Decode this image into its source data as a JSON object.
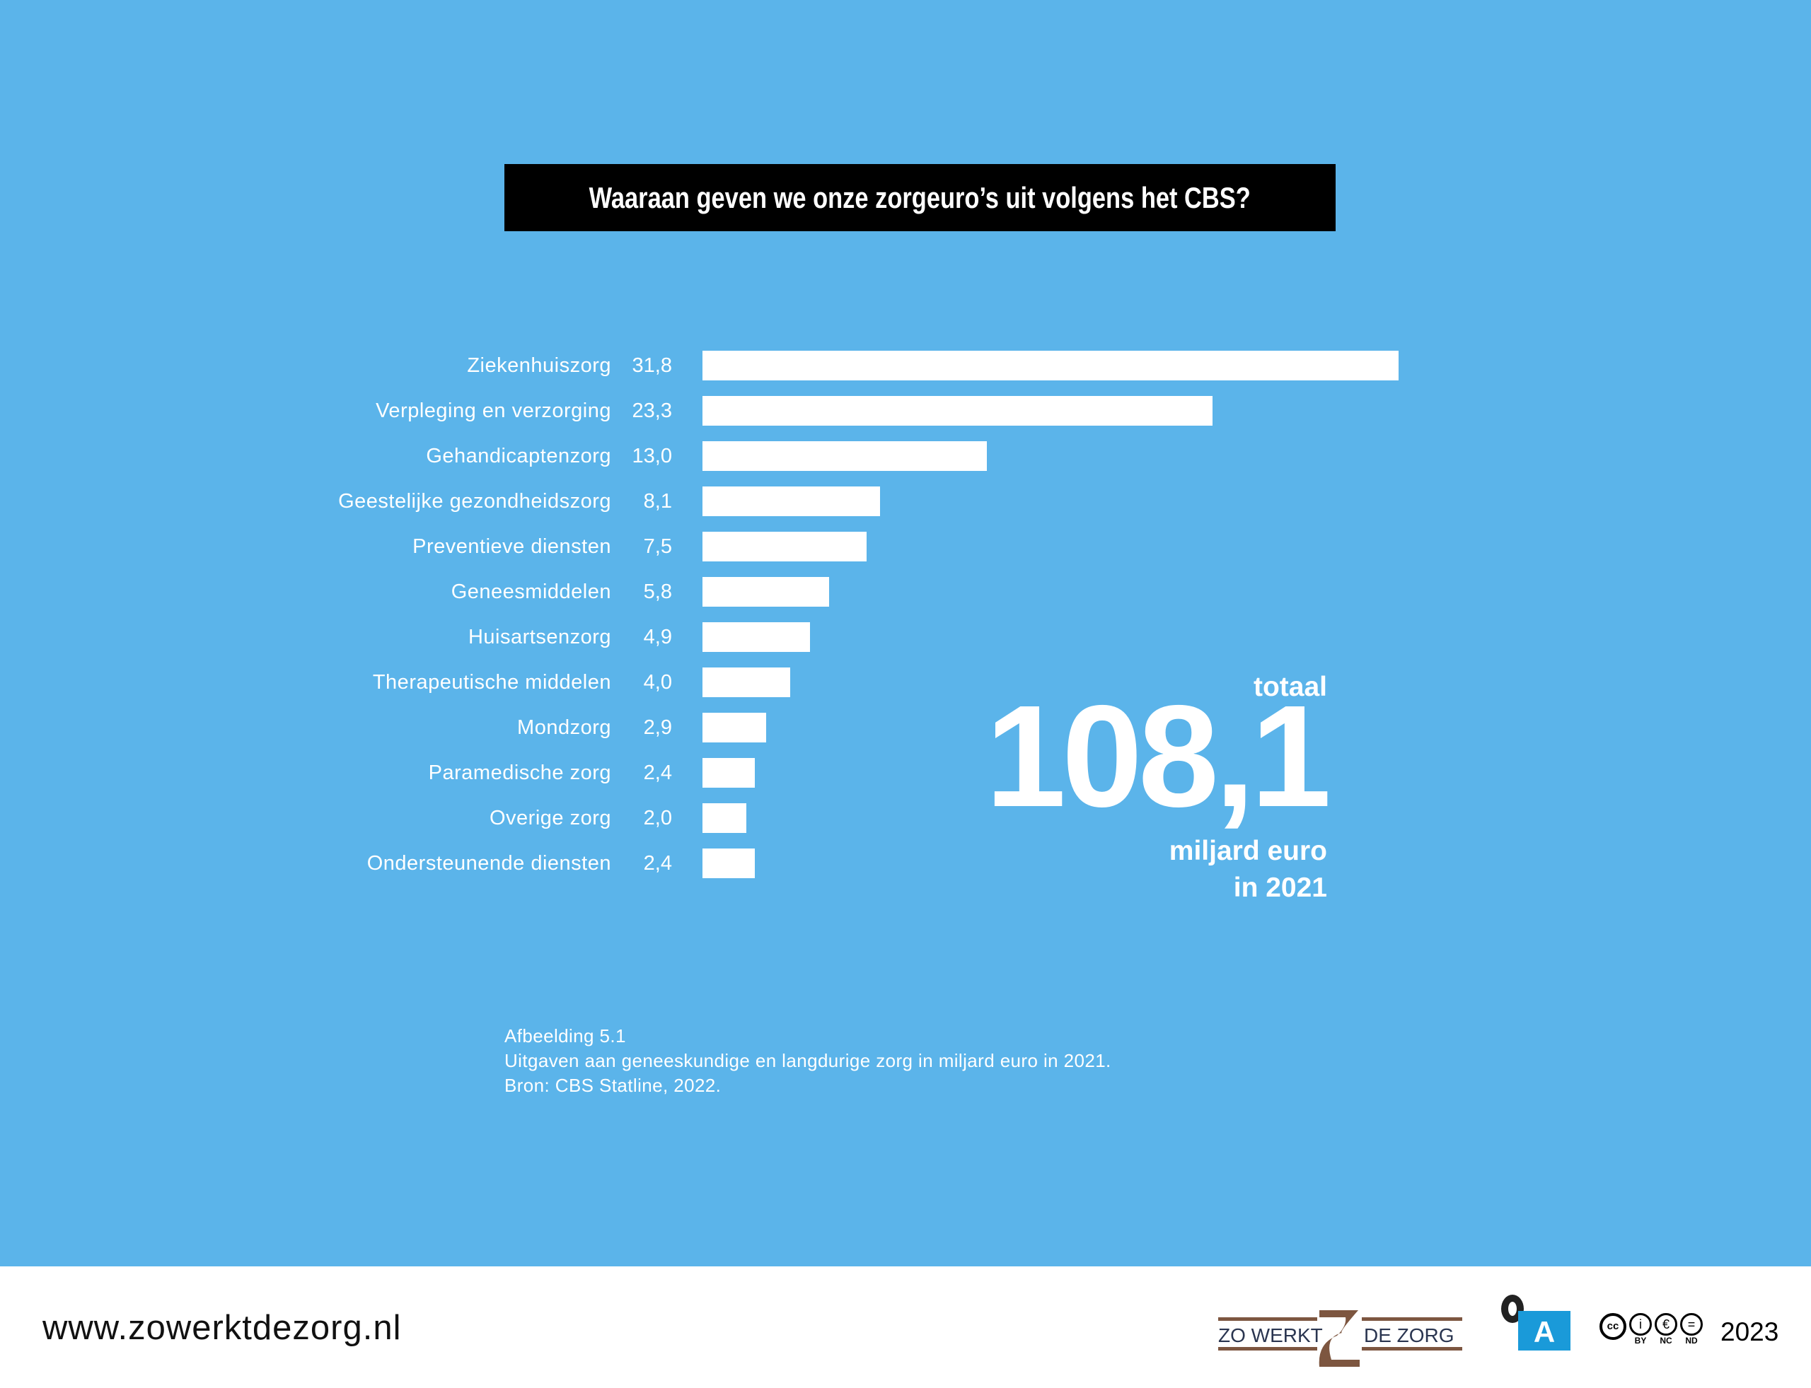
{
  "chart_data": {
    "type": "bar",
    "orientation": "horizontal",
    "title": "Waaraan geven we onze zorgeuro’s uit volgens het CBS?",
    "categories": [
      "Ziekenhuiszorg",
      "Verpleging en verzorging",
      "Gehandicaptenzorg",
      "Geestelijke gezondheidszorg",
      "Preventieve diensten",
      "Geneesmiddelen",
      "Huisartsenzorg",
      "Therapeutische middelen",
      "Mondzorg",
      "Paramedische zorg",
      "Overige zorg",
      "Ondersteunende diensten"
    ],
    "values": [
      31.8,
      23.3,
      13.0,
      8.1,
      7.5,
      5.8,
      4.9,
      4.0,
      2.9,
      2.4,
      2.0,
      2.4
    ],
    "value_labels": [
      "31,8",
      "23,3",
      "13,0",
      "8,1",
      "7,5",
      "5,8",
      "4,9",
      "4,0",
      "2,9",
      "2,4",
      "2,0",
      "2,4"
    ],
    "unit": "miljard euro",
    "xlim": [
      0,
      31.8
    ],
    "grid": false
  },
  "total": {
    "label": "totaal",
    "value": "108,1",
    "unit": "miljard euro",
    "year": "in 2021"
  },
  "caption": {
    "line1": "Afbeelding 5.1",
    "line2": "Uitgaven aan geneeskundige en langdurige zorg in miljard euro in 2021.",
    "line3": "Bron: CBS Statline, 2022."
  },
  "footer": {
    "url": "www.zowerktdezorg.nl",
    "logo_left": "ZO WERKT",
    "logo_right": "DE ZORG",
    "oa_letter": "A",
    "cc_labels": [
      "BY",
      "NC",
      "ND"
    ],
    "year": "2023"
  },
  "colors": {
    "background": "#5bb4ea",
    "bar": "#ffffff",
    "title_bg": "#000000",
    "logo_brown": "#7d5640",
    "oa_blue": "#1a9ad9"
  }
}
